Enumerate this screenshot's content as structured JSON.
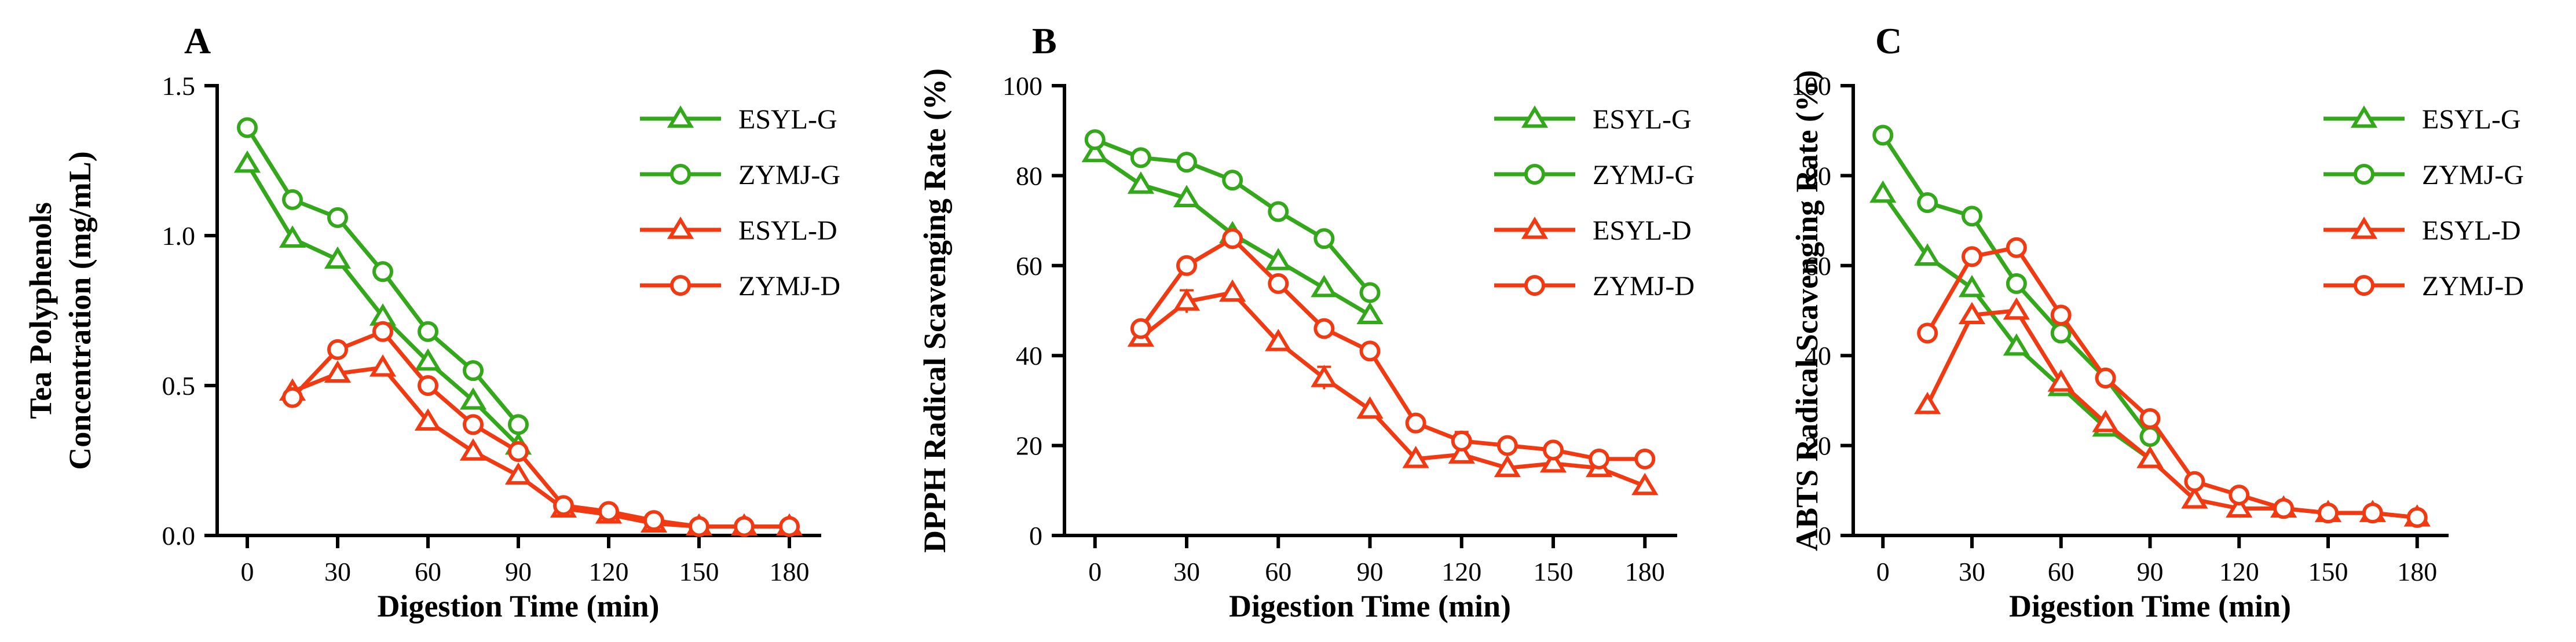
{
  "colors": {
    "G": "#33a81a",
    "D": "#f23a12"
  },
  "chart_data": [
    {
      "panel": "A",
      "type": "line",
      "xlabel": "Digestion Time (min)",
      "ylabel_lines": [
        "Tea Polyphenols",
        "Concentration (mg/mL)"
      ],
      "xlim": [
        -10,
        190
      ],
      "xticks": [
        0,
        30,
        60,
        90,
        120,
        150,
        180
      ],
      "ylim": [
        0,
        1.5
      ],
      "yticks": [
        0,
        0.5,
        1.0,
        1.5
      ],
      "ytick_labels": [
        "0.0",
        "0.5",
        "1.0",
        "1.5"
      ],
      "legend_position": "top-right",
      "series": [
        {
          "name": "ESYL-G",
          "marker": "triangle",
          "group": "G",
          "x": [
            0,
            15,
            30,
            45,
            60,
            75,
            90
          ],
          "y": [
            1.24,
            0.99,
            0.92,
            0.73,
            0.58,
            0.45,
            0.3
          ]
        },
        {
          "name": "ZYMJ-G",
          "marker": "circle",
          "group": "G",
          "x": [
            0,
            15,
            30,
            45,
            60,
            75,
            90
          ],
          "y": [
            1.36,
            1.12,
            1.06,
            0.88,
            0.68,
            0.55,
            0.37
          ],
          "err": [
            0.02,
            0,
            0,
            0,
            0,
            0,
            0
          ]
        },
        {
          "name": "ESYL-D",
          "marker": "triangle",
          "group": "D",
          "x": [
            15,
            30,
            45,
            60,
            75,
            90,
            105,
            120,
            135,
            150,
            165,
            180
          ],
          "y": [
            0.48,
            0.54,
            0.56,
            0.38,
            0.28,
            0.2,
            0.09,
            0.07,
            0.04,
            0.03,
            0.03,
            0.03
          ]
        },
        {
          "name": "ZYMJ-D",
          "marker": "circle",
          "group": "D",
          "x": [
            15,
            30,
            45,
            60,
            75,
            90,
            105,
            120,
            135,
            150,
            165,
            180
          ],
          "y": [
            0.46,
            0.62,
            0.68,
            0.5,
            0.37,
            0.28,
            0.1,
            0.08,
            0.05,
            0.03,
            0.03,
            0.03
          ]
        }
      ]
    },
    {
      "panel": "B",
      "type": "line",
      "xlabel": "Digestion Time (min)",
      "ylabel_lines": [
        "DPPH Radical Scavenging Rate (%)"
      ],
      "xlim": [
        -10,
        190
      ],
      "xticks": [
        0,
        30,
        60,
        90,
        120,
        150,
        180
      ],
      "ylim": [
        0,
        100
      ],
      "yticks": [
        0,
        20,
        40,
        60,
        80,
        100
      ],
      "ytick_labels": [
        "0",
        "20",
        "40",
        "60",
        "80",
        "100"
      ],
      "legend_position": "top-right",
      "series": [
        {
          "name": "ESYL-G",
          "marker": "triangle",
          "group": "G",
          "x": [
            0,
            15,
            30,
            45,
            60,
            75,
            90
          ],
          "y": [
            85,
            78,
            75,
            67,
            61,
            55,
            49
          ]
        },
        {
          "name": "ZYMJ-G",
          "marker": "circle",
          "group": "G",
          "x": [
            0,
            15,
            30,
            45,
            60,
            75,
            90
          ],
          "y": [
            88,
            84,
            83,
            79,
            72,
            66,
            54
          ]
        },
        {
          "name": "ESYL-D",
          "marker": "triangle",
          "group": "D",
          "x": [
            15,
            30,
            45,
            60,
            75,
            90,
            105,
            120,
            135,
            150,
            165,
            180
          ],
          "y": [
            44,
            52,
            54,
            43,
            35,
            28,
            17,
            18,
            15,
            16,
            15,
            11
          ],
          "err": [
            0,
            2.5,
            0,
            0,
            2.5,
            0,
            0,
            0,
            0,
            0,
            0,
            0
          ]
        },
        {
          "name": "ZYMJ-D",
          "marker": "circle",
          "group": "D",
          "x": [
            15,
            30,
            45,
            60,
            75,
            90,
            105,
            120,
            135,
            150,
            165,
            180
          ],
          "y": [
            46,
            60,
            66,
            56,
            46,
            41,
            25,
            21,
            20,
            19,
            17,
            17
          ],
          "err": [
            0,
            0,
            0,
            0,
            0,
            0,
            0,
            2,
            0,
            0,
            0,
            0
          ]
        }
      ]
    },
    {
      "panel": "C",
      "type": "line",
      "xlabel": "Digestion Time (min)",
      "ylabel_lines": [
        "ABTS Radical Scavenging Rate (%)"
      ],
      "xlim": [
        -10,
        190
      ],
      "xticks": [
        0,
        30,
        60,
        90,
        120,
        150,
        180
      ],
      "ylim": [
        0,
        100
      ],
      "yticks": [
        0,
        20,
        40,
        60,
        80,
        100
      ],
      "ytick_labels": [
        "0",
        "20",
        "40",
        "60",
        "80",
        "100"
      ],
      "legend_position": "top-right",
      "series": [
        {
          "name": "ESYL-G",
          "marker": "triangle",
          "group": "G",
          "x": [
            0,
            15,
            30,
            45,
            60,
            75,
            90
          ],
          "y": [
            76,
            62,
            55,
            42,
            33,
            24,
            17
          ]
        },
        {
          "name": "ZYMJ-G",
          "marker": "circle",
          "group": "G",
          "x": [
            0,
            15,
            30,
            45,
            60,
            75,
            90
          ],
          "y": [
            89,
            74,
            71,
            56,
            45,
            35,
            22
          ]
        },
        {
          "name": "ESYL-D",
          "marker": "triangle",
          "group": "D",
          "x": [
            15,
            30,
            45,
            60,
            75,
            90,
            105,
            120,
            135,
            150,
            165,
            180
          ],
          "y": [
            29,
            49,
            50,
            34,
            25,
            17,
            8,
            6,
            6,
            5,
            5,
            4
          ]
        },
        {
          "name": "ZYMJ-D",
          "marker": "circle",
          "group": "D",
          "x": [
            15,
            30,
            45,
            60,
            75,
            90,
            105,
            120,
            135,
            150,
            165,
            180
          ],
          "y": [
            45,
            62,
            64,
            49,
            35,
            26,
            12,
            9,
            6,
            5,
            5,
            4
          ]
        }
      ]
    }
  ]
}
